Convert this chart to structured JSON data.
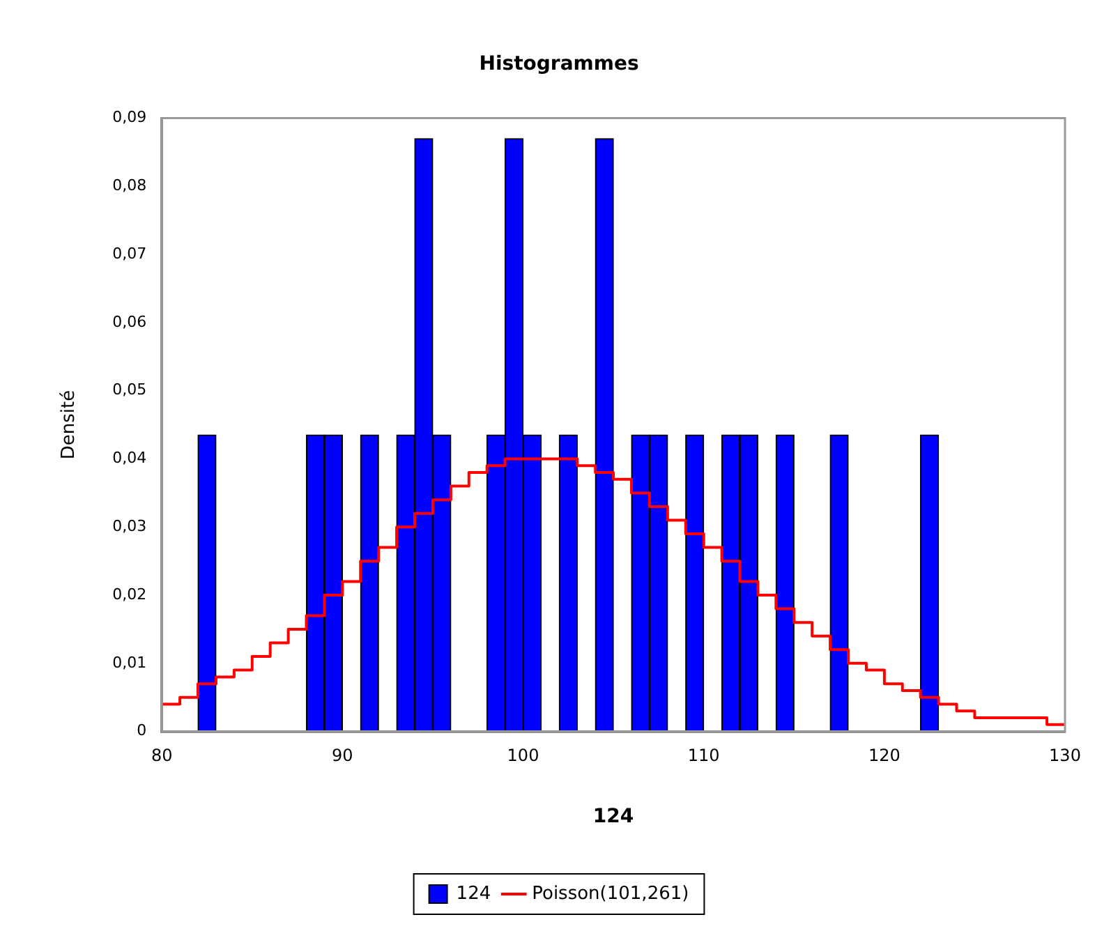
{
  "chart_data": {
    "type": "histogram",
    "title": "Histogrammes",
    "xlabel": "124",
    "ylabel": "Densité",
    "xlim": [
      80,
      130
    ],
    "xticks": [
      80,
      90,
      100,
      110,
      120,
      130
    ],
    "ylim": [
      0,
      0.09
    ],
    "yticks": [
      {
        "value": 0,
        "label": "0"
      },
      {
        "value": 0.01,
        "label": "0,01"
      },
      {
        "value": 0.02,
        "label": "0,02"
      },
      {
        "value": 0.03,
        "label": "0,03"
      },
      {
        "value": 0.04,
        "label": "0,04"
      },
      {
        "value": 0.05,
        "label": "0,05"
      },
      {
        "value": 0.06,
        "label": "0,06"
      },
      {
        "value": 0.07,
        "label": "0,07"
      },
      {
        "value": 0.08,
        "label": "0,08"
      },
      {
        "value": 0.09,
        "label": "0,09"
      }
    ],
    "grid": false,
    "legend": "bottom",
    "series": [
      {
        "name": "124",
        "color": "#0000ff",
        "bins": [
          80,
          81,
          82,
          83,
          84,
          85,
          86,
          87,
          88,
          89,
          90,
          91,
          92,
          93,
          94,
          95,
          96,
          97,
          98,
          99,
          100,
          101,
          102,
          103,
          104,
          105,
          106,
          107,
          108,
          109,
          110,
          111,
          112,
          113,
          114,
          115,
          116,
          117,
          118,
          119,
          120,
          121,
          122,
          123,
          124,
          125,
          126,
          127,
          128,
          129,
          130
        ],
        "values": [
          0,
          0,
          0.0435,
          0,
          0,
          0,
          0,
          0,
          0.0435,
          0.0435,
          0,
          0.0435,
          0,
          0.0435,
          0.087,
          0.0435,
          0,
          0,
          0.0435,
          0.087,
          0.0435,
          0,
          0.0435,
          0,
          0.087,
          0,
          0.0435,
          0.0435,
          0,
          0.0435,
          0,
          0.0435,
          0.0435,
          0,
          0.0435,
          0,
          0,
          0.0435,
          0,
          0,
          0,
          0,
          0.0435,
          0,
          0,
          0,
          0,
          0,
          0,
          0
        ]
      },
      {
        "name": "Poisson(101,261)",
        "type": "step",
        "color": "#ff0000",
        "x": [
          80,
          81,
          82,
          83,
          84,
          85,
          86,
          87,
          88,
          89,
          90,
          91,
          92,
          93,
          94,
          95,
          96,
          97,
          98,
          99,
          100,
          101,
          102,
          103,
          104,
          105,
          106,
          107,
          108,
          109,
          110,
          111,
          112,
          113,
          114,
          115,
          116,
          117,
          118,
          119,
          120,
          121,
          122,
          123,
          124,
          125,
          126,
          127,
          128,
          129,
          130
        ],
        "values": [
          0.004,
          0.005,
          0.007,
          0.008,
          0.009,
          0.011,
          0.013,
          0.015,
          0.017,
          0.02,
          0.022,
          0.025,
          0.027,
          0.03,
          0.032,
          0.034,
          0.036,
          0.038,
          0.039,
          0.04,
          0.04,
          0.04,
          0.04,
          0.039,
          0.038,
          0.037,
          0.035,
          0.033,
          0.031,
          0.029,
          0.027,
          0.025,
          0.022,
          0.02,
          0.018,
          0.016,
          0.014,
          0.012,
          0.01,
          0.009,
          0.007,
          0.006,
          0.005,
          0.004,
          0.003,
          0.002,
          0.002,
          0.002,
          0.002,
          0.001,
          0.001
        ]
      }
    ]
  }
}
